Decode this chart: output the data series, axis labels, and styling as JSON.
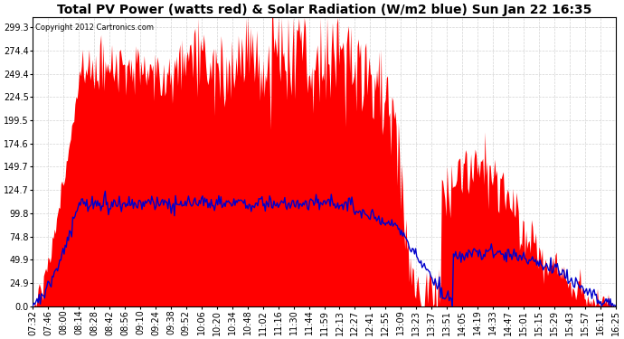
{
  "title": "Total PV Power (watts red) & Solar Radiation (W/m2 blue) Sun Jan 22 16:35",
  "copyright_text": "Copyright 2012 Cartronics.com",
  "background_color": "#ffffff",
  "plot_bg_color": "#ffffff",
  "grid_color": "#c8c8c8",
  "red_color": "#ff0000",
  "blue_color": "#0000cc",
  "y_ticks": [
    0.0,
    24.9,
    49.9,
    74.8,
    99.8,
    124.7,
    149.7,
    174.6,
    199.5,
    224.5,
    249.4,
    274.4,
    299.3
  ],
  "x_labels": [
    "07:32",
    "07:46",
    "08:00",
    "08:14",
    "08:28",
    "08:42",
    "08:56",
    "09:10",
    "09:24",
    "09:38",
    "09:52",
    "10:06",
    "10:20",
    "10:34",
    "10:48",
    "11:02",
    "11:16",
    "11:30",
    "11:44",
    "11:59",
    "12:13",
    "12:27",
    "12:41",
    "12:55",
    "13:09",
    "13:23",
    "13:37",
    "13:51",
    "14:05",
    "14:19",
    "14:33",
    "14:47",
    "15:01",
    "15:15",
    "15:29",
    "15:43",
    "15:57",
    "16:11",
    "16:25"
  ],
  "n_points": 540,
  "title_fontsize": 10,
  "axis_fontsize": 7,
  "copyright_fontsize": 6,
  "ymax": 310
}
